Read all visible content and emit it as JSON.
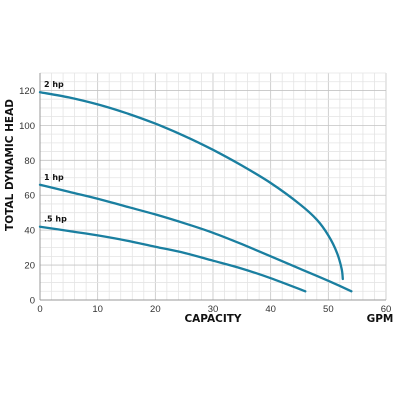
{
  "chart_data": {
    "type": "line",
    "xlabel": "CAPACITY",
    "ylabel": "TOTAL DYNAMIC HEAD",
    "x_unit": "GPM",
    "xlim": [
      0,
      60
    ],
    "ylim": [
      0,
      130
    ],
    "x_ticks": [
      "0",
      "10",
      "20",
      "30",
      "40",
      "50",
      "60"
    ],
    "y_ticks": [
      "0",
      "20",
      "40",
      "60",
      "80",
      "100",
      "120"
    ],
    "grid": true,
    "line_color": "#1a7fa0",
    "series": [
      {
        "name": "2 hp",
        "points": [
          [
            0,
            119
          ],
          [
            5,
            116
          ],
          [
            10,
            112
          ],
          [
            15,
            107
          ],
          [
            20,
            101
          ],
          [
            25,
            94
          ],
          [
            30,
            86
          ],
          [
            35,
            77
          ],
          [
            40,
            67
          ],
          [
            45,
            55
          ],
          [
            48,
            46
          ],
          [
            50,
            37
          ],
          [
            51.5,
            27
          ],
          [
            52.3,
            18
          ],
          [
            52.5,
            12
          ]
        ]
      },
      {
        "name": "1 hp",
        "points": [
          [
            0,
            66
          ],
          [
            5,
            62
          ],
          [
            10,
            58
          ],
          [
            15,
            53.5
          ],
          [
            20,
            49
          ],
          [
            25,
            44
          ],
          [
            30,
            38.5
          ],
          [
            35,
            32
          ],
          [
            40,
            25
          ],
          [
            45,
            18
          ],
          [
            50,
            11
          ],
          [
            54,
            5
          ]
        ]
      },
      {
        "name": ".5 hp",
        "points": [
          [
            0,
            42
          ],
          [
            5,
            39.5
          ],
          [
            10,
            37
          ],
          [
            15,
            34
          ],
          [
            20,
            30.5
          ],
          [
            25,
            27
          ],
          [
            30,
            22.5
          ],
          [
            35,
            18
          ],
          [
            40,
            12.5
          ],
          [
            46,
            5
          ]
        ]
      }
    ]
  }
}
